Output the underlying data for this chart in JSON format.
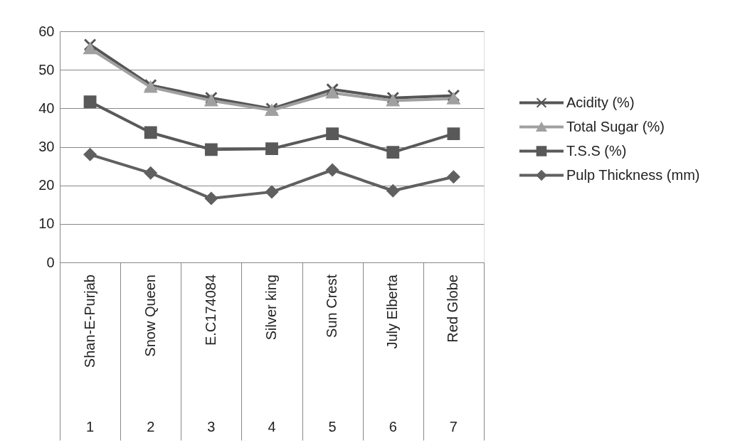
{
  "chart_data": {
    "type": "line",
    "categories": [
      "Shan-E-Purjab",
      "Snow Queen",
      "E.C174084",
      "Silver king",
      "Sun Crest",
      "July Elberta",
      "Red Globe"
    ],
    "series": [
      {
        "name": "Acidity (%)",
        "color": "#555555",
        "marker": "cross",
        "values": [
          56.5,
          46.0,
          42.7,
          39.9,
          44.9,
          42.7,
          43.3
        ]
      },
      {
        "name": "Total Sugar (%)",
        "color": "#a0a0a0",
        "marker": "triangle",
        "values": [
          55.5,
          45.5,
          42.0,
          39.5,
          44.0,
          42.0,
          42.5
        ]
      },
      {
        "name": "T.S.S (%)",
        "color": "#595959",
        "marker": "square",
        "values": [
          41.7,
          33.7,
          29.3,
          29.5,
          33.4,
          28.6,
          33.4
        ]
      },
      {
        "name": "Pulp Thickness (mm)",
        "color": "#606060",
        "marker": "diamond",
        "values": [
          28.0,
          23.2,
          16.6,
          18.3,
          24.0,
          18.6,
          22.2
        ]
      }
    ],
    "ylim": [
      0,
      60
    ],
    "yticks": [
      0,
      10,
      20,
      30,
      40,
      50,
      60
    ],
    "grid": "y",
    "legend": "right",
    "line_style": "solid",
    "annotations": [
      "1",
      "2",
      "3",
      "4",
      "5",
      "6",
      "7"
    ]
  }
}
